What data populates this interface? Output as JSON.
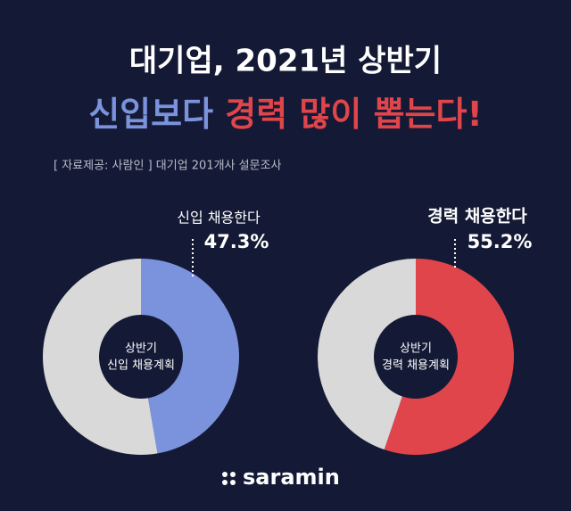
{
  "header": {
    "title": "대기업, 2021년 상반기",
    "headline": [
      "신입보다",
      "경력",
      "많이 뽑는다!"
    ],
    "source": "[ 자료제공: 사람인 ] 대기업 201개사 설문조사"
  },
  "chart_data": [
    {
      "type": "pie",
      "center_label": [
        "상반기",
        "신입 채용계획"
      ],
      "categories": [
        "신입 채용한다",
        null
      ],
      "values": [
        47.3,
        52.7
      ],
      "value_labels": [
        "47.3%",
        null
      ],
      "colors": [
        "#7b93dc",
        "#d9d9d9"
      ]
    },
    {
      "type": "pie",
      "center_label": [
        "상반기",
        "경력 채용계획"
      ],
      "categories": [
        "경력 채용한다",
        null
      ],
      "values": [
        55.2,
        44.8
      ],
      "value_labels": [
        "55.2%",
        null
      ],
      "colors": [
        "#e0454b",
        "#d9d9d9"
      ]
    }
  ],
  "footer": {
    "logo": "saramin"
  }
}
